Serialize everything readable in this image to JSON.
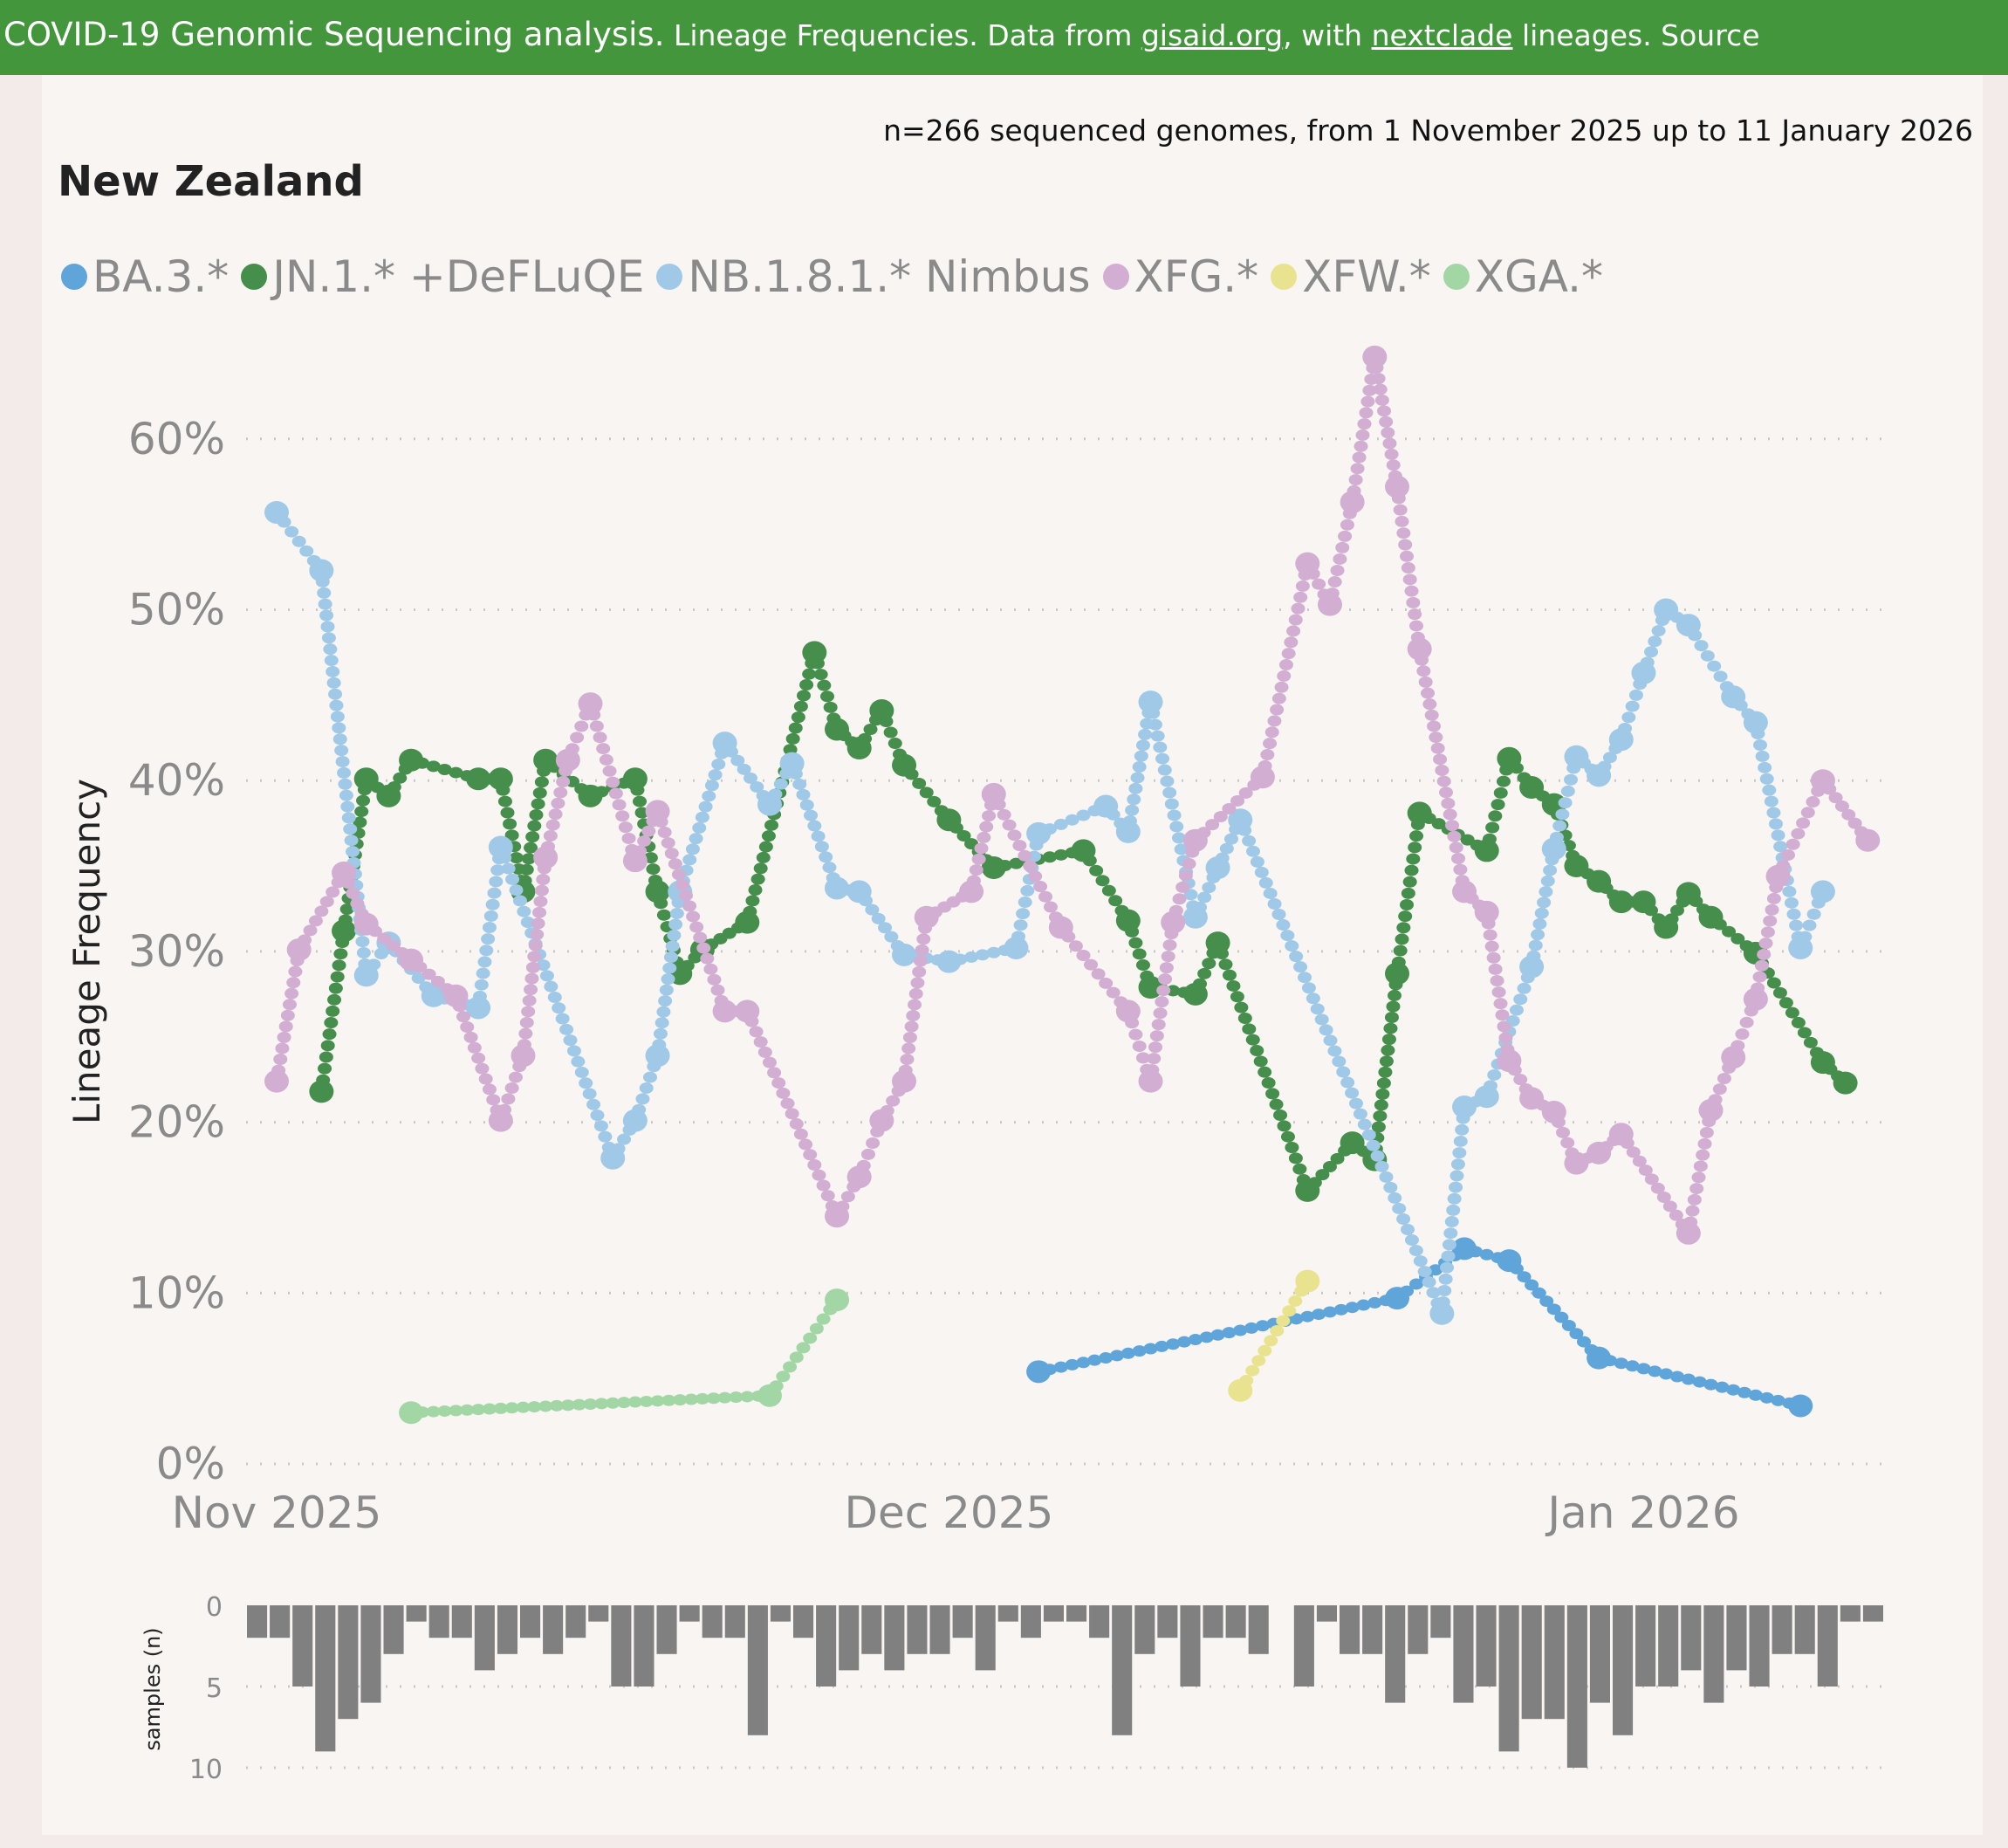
{
  "header": {
    "part1": "COVID-19 Genomic Sequencing analysis.",
    "part2": " Lineage Frequencies. Data from ",
    "link1": "gisaid.org",
    "part3": ", with ",
    "link2": "nextclade",
    "part4": " lineages. Source"
  },
  "summary": "n=266 sequenced genomes, from 1 November 2025 up to 11 January 2026",
  "country": "New Zealand",
  "chart_data": [
    {
      "type": "line",
      "title": "New Zealand",
      "ylabel": "Lineage Frequency",
      "xlabel": "",
      "x_unit": "days since 1 Nov 2025",
      "ylim": [
        0,
        65
      ],
      "yticks": [
        "0%",
        "10%",
        "20%",
        "30%",
        "40%",
        "50%",
        "60%"
      ],
      "ytick_values": [
        0,
        10,
        20,
        30,
        40,
        50,
        60
      ],
      "xticks": [
        "Nov 2025",
        "Dec 2025",
        "Jan 2026"
      ],
      "xtick_values": [
        0,
        30,
        61
      ],
      "grid": true,
      "legend_position": "top-left",
      "series": [
        {
          "name": "BA.3.*",
          "color": "#5fa5da",
          "points": [
            [
              34,
              5.4
            ],
            [
              50,
              9.7
            ],
            [
              53,
              12.6
            ],
            [
              55,
              11.9
            ],
            [
              59,
              6.2
            ],
            [
              68,
              3.4
            ]
          ]
        },
        {
          "name": "JN.1.* +DeFLuQE",
          "color": "#468e4c",
          "points": [
            [
              2,
              21.8
            ],
            [
              3,
              31.2
            ],
            [
              4,
              40.1
            ],
            [
              5,
              39.1
            ],
            [
              6,
              41.2
            ],
            [
              9,
              40.1
            ],
            [
              10,
              40.1
            ],
            [
              11,
              33.5
            ],
            [
              12,
              41.2
            ],
            [
              14,
              39.1
            ],
            [
              16,
              40.1
            ],
            [
              17,
              33.5
            ],
            [
              18,
              28.7
            ],
            [
              19,
              30.1
            ],
            [
              21,
              31.7
            ],
            [
              24,
              47.5
            ],
            [
              25,
              43
            ],
            [
              26,
              41.9
            ],
            [
              27,
              44.1
            ],
            [
              28,
              40.9
            ],
            [
              30,
              37.7
            ],
            [
              32,
              34.9
            ],
            [
              36,
              35.9
            ],
            [
              38,
              31.8
            ],
            [
              39,
              27.9
            ],
            [
              41,
              27.5
            ],
            [
              42,
              30.5
            ],
            [
              46,
              16
            ],
            [
              48,
              18.8
            ],
            [
              49,
              17.8
            ],
            [
              50,
              28.7
            ],
            [
              51,
              38.1
            ],
            [
              54,
              35.9
            ],
            [
              55,
              41.3
            ],
            [
              56,
              39.6
            ],
            [
              57,
              38.6
            ],
            [
              58,
              35
            ],
            [
              59,
              34.1
            ],
            [
              60,
              32.9
            ],
            [
              61,
              32.9
            ],
            [
              62,
              31.4
            ],
            [
              63,
              33.4
            ],
            [
              64,
              32
            ],
            [
              66,
              29.9
            ],
            [
              69,
              23.5
            ],
            [
              70,
              22.3
            ]
          ]
        },
        {
          "name": "NB.1.8.1.* Nimbus",
          "color": "#a0c9e8",
          "points": [
            [
              0,
              55.7
            ],
            [
              2,
              52.3
            ],
            [
              4,
              28.6
            ],
            [
              5,
              30.5
            ],
            [
              7,
              27.4
            ],
            [
              9,
              26.7
            ],
            [
              10,
              36.1
            ],
            [
              15,
              17.9
            ],
            [
              16,
              20.1
            ],
            [
              17,
              23.9
            ],
            [
              18,
              33.5
            ],
            [
              20,
              42.2
            ],
            [
              22,
              38.6
            ],
            [
              23,
              41
            ],
            [
              25,
              33.7
            ],
            [
              26,
              33.5
            ],
            [
              28,
              29.8
            ],
            [
              30,
              29.4
            ],
            [
              33,
              30.2
            ],
            [
              34,
              36.9
            ],
            [
              37,
              38.5
            ],
            [
              38,
              37
            ],
            [
              39,
              44.6
            ],
            [
              41,
              32
            ],
            [
              42,
              34.9
            ],
            [
              43,
              37.7
            ],
            [
              52,
              8.8
            ],
            [
              53,
              20.9
            ],
            [
              54,
              21.5
            ],
            [
              56,
              29.1
            ],
            [
              57,
              36
            ],
            [
              58,
              41.4
            ],
            [
              59,
              40.3
            ],
            [
              60,
              42.4
            ],
            [
              61,
              46.3
            ],
            [
              62,
              50
            ],
            [
              63,
              49.1
            ],
            [
              65,
              44.9
            ],
            [
              66,
              43.4
            ],
            [
              68,
              30.2
            ],
            [
              69,
              33.5
            ]
          ]
        },
        {
          "name": "XFG.*",
          "color": "#d2aed2",
          "points": [
            [
              0,
              22.4
            ],
            [
              1,
              30.1
            ],
            [
              3,
              34.6
            ],
            [
              4,
              31.6
            ],
            [
              6,
              29.5
            ],
            [
              8,
              27.4
            ],
            [
              10,
              20.1
            ],
            [
              11,
              23.9
            ],
            [
              12,
              35.5
            ],
            [
              13,
              41.2
            ],
            [
              14,
              44.5
            ],
            [
              16,
              35.3
            ],
            [
              17,
              38.2
            ],
            [
              20,
              26.5
            ],
            [
              21,
              26.5
            ],
            [
              25,
              14.5
            ],
            [
              26,
              16.8
            ],
            [
              27,
              20.1
            ],
            [
              28,
              22.4
            ],
            [
              29,
              32
            ],
            [
              31,
              33.5
            ],
            [
              32,
              39.2
            ],
            [
              35,
              31.4
            ],
            [
              38,
              26.5
            ],
            [
              39,
              22.4
            ],
            [
              40,
              31.7
            ],
            [
              41,
              36.5
            ],
            [
              44,
              40.2
            ],
            [
              46,
              52.7
            ],
            [
              47,
              50.3
            ],
            [
              48,
              56.3
            ],
            [
              49,
              64.8
            ],
            [
              50,
              57.2
            ],
            [
              51,
              47.7
            ],
            [
              53,
              33.5
            ],
            [
              54,
              32.3
            ],
            [
              55,
              23.6
            ],
            [
              56,
              21.4
            ],
            [
              57,
              20.6
            ],
            [
              58,
              17.6
            ],
            [
              59,
              18.2
            ],
            [
              60,
              19.3
            ],
            [
              63,
              13.5
            ],
            [
              64,
              20.7
            ],
            [
              65,
              23.8
            ],
            [
              66,
              27.2
            ],
            [
              67,
              34.4
            ],
            [
              69,
              40
            ],
            [
              71,
              36.5
            ]
          ]
        },
        {
          "name": "XFW.*",
          "color": "#e9e38f",
          "points": [
            [
              43,
              4.3
            ],
            [
              46,
              10.7
            ]
          ]
        },
        {
          "name": "XGA.*",
          "color": "#a3d6a5",
          "points": [
            [
              6,
              3
            ],
            [
              22,
              4
            ],
            [
              25,
              9.6
            ]
          ]
        }
      ]
    },
    {
      "type": "bar",
      "ylabel": "samples (n)",
      "yticks": [
        "0",
        "5",
        "10"
      ],
      "ytick_values": [
        0,
        5,
        10
      ],
      "ylim": [
        0,
        10
      ],
      "inverted": true,
      "color": "#808080",
      "categories_note": "daily, 1 Nov 2025 to 11 Jan 2026",
      "values": [
        2,
        2,
        5,
        9,
        7,
        6,
        3,
        1,
        2,
        2,
        4,
        3,
        2,
        3,
        2,
        1,
        5,
        5,
        3,
        1,
        2,
        2,
        8,
        1,
        2,
        5,
        4,
        3,
        4,
        3,
        3,
        2,
        4,
        1,
        2,
        1,
        1,
        2,
        8,
        3,
        2,
        5,
        2,
        2,
        3,
        0,
        5,
        1,
        3,
        3,
        6,
        3,
        2,
        6,
        5,
        9,
        7,
        7,
        10,
        6,
        8,
        5,
        5,
        4,
        6,
        4,
        5,
        3,
        3,
        5,
        1,
        1
      ]
    }
  ]
}
